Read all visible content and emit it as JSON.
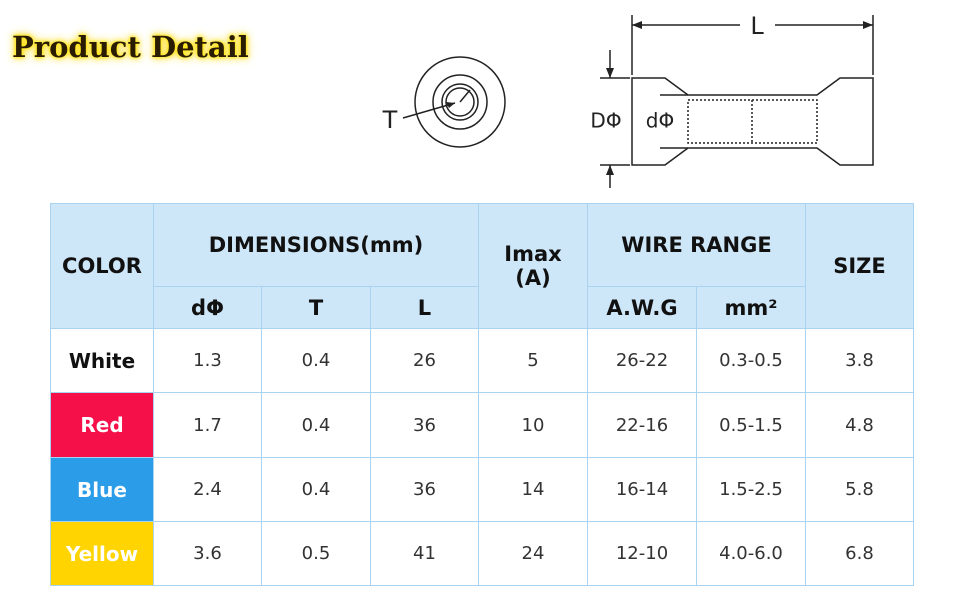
{
  "title": "Product Detail",
  "diagram": {
    "end_view_label": "T",
    "length_label": "L",
    "outer_diameter_label": "DΦ",
    "inner_diameter_label": "dΦ"
  },
  "table": {
    "header": {
      "color": "COLOR",
      "dimensions": "DIMENSIONS(mm)",
      "imax": [
        "Imax",
        "(A)"
      ],
      "wire_range": "WIRE RANGE",
      "size": "SIZE",
      "dimension_columns": [
        "dΦ",
        "T",
        "L"
      ],
      "wire_columns": [
        "A.W.G",
        "mm²"
      ]
    },
    "rows": [
      [
        "White",
        "1.3",
        "0.4",
        "26",
        "5",
        "26-22",
        "0.3-0.5",
        "3.8"
      ],
      [
        "Red",
        "1.7",
        "0.4",
        "36",
        "10",
        "22-16",
        "0.5-1.5",
        "4.8"
      ],
      [
        "Blue",
        "2.4",
        "0.4",
        "36",
        "14",
        "16-14",
        "1.5-2.5",
        "5.8"
      ],
      [
        "Yellow",
        "3.6",
        "0.5",
        "41",
        "24",
        "12-10",
        "4.0-6.0",
        "6.8"
      ]
    ]
  }
}
